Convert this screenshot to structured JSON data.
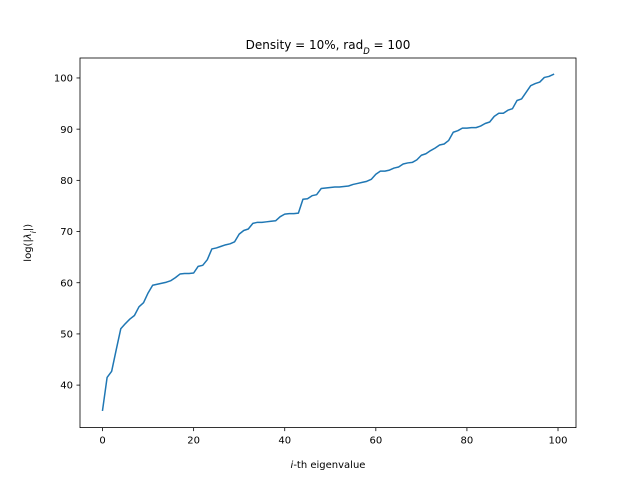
{
  "chart_data": {
    "type": "line",
    "title": "Density = 10%, rad",
    "title_subscript": "D",
    "title_suffix": " = 100",
    "xlabel_italic": "i",
    "xlabel": "-th eigenvalue",
    "ylabel_prefix": "log(|",
    "ylabel_symbol": "λ",
    "ylabel_subscript": "i",
    "ylabel_suffix": "|)",
    "xlim": [
      -4.95,
      103.95
    ],
    "ylim": [
      31.7,
      103.9
    ],
    "xticks": [
      0,
      20,
      40,
      60,
      80,
      100
    ],
    "yticks": [
      40,
      50,
      60,
      70,
      80,
      90,
      100
    ],
    "grid": false,
    "series": [
      {
        "color": "#1f77b4",
        "x": [
          0,
          1,
          2,
          3,
          4,
          5,
          6,
          7,
          8,
          9,
          10,
          11,
          12,
          13,
          14,
          15,
          16,
          17,
          18,
          19,
          20,
          21,
          22,
          23,
          24,
          25,
          26,
          27,
          28,
          29,
          30,
          31,
          32,
          33,
          34,
          35,
          36,
          37,
          38,
          39,
          40,
          41,
          42,
          43,
          44,
          45,
          46,
          47,
          48,
          49,
          50,
          51,
          52,
          53,
          54,
          55,
          56,
          57,
          58,
          59,
          60,
          61,
          62,
          63,
          64,
          65,
          66,
          67,
          68,
          69,
          70,
          71,
          72,
          73,
          74,
          75,
          76,
          77,
          78,
          79,
          80,
          81,
          82,
          83,
          84,
          85,
          86,
          87,
          88,
          89,
          90,
          91,
          92,
          93,
          94,
          95,
          96,
          97,
          98,
          99
        ],
        "y": [
          35.1,
          41.5,
          42.7,
          46.9,
          51.0,
          52.0,
          52.9,
          53.6,
          55.3,
          56.1,
          58.0,
          59.5,
          59.7,
          59.9,
          60.1,
          60.4,
          61.0,
          61.7,
          61.8,
          61.8,
          61.9,
          63.2,
          63.4,
          64.5,
          66.6,
          66.8,
          67.1,
          67.4,
          67.6,
          68.0,
          69.5,
          70.2,
          70.5,
          71.6,
          71.8,
          71.8,
          71.9,
          72.0,
          72.1,
          72.9,
          73.4,
          73.5,
          73.5,
          73.6,
          76.3,
          76.4,
          77.0,
          77.2,
          78.4,
          78.5,
          78.6,
          78.7,
          78.7,
          78.8,
          78.9,
          79.2,
          79.4,
          79.6,
          79.8,
          80.2,
          81.2,
          81.8,
          81.8,
          82.0,
          82.4,
          82.6,
          83.2,
          83.4,
          83.5,
          84.0,
          84.9,
          85.2,
          85.8,
          86.3,
          86.9,
          87.1,
          87.8,
          89.4,
          89.7,
          90.2,
          90.2,
          90.3,
          90.3,
          90.6,
          91.1,
          91.4,
          92.5,
          93.1,
          93.1,
          93.7,
          94.0,
          95.6,
          95.9,
          97.2,
          98.5,
          98.9,
          99.2,
          100.1,
          100.3,
          100.7
        ]
      }
    ]
  }
}
